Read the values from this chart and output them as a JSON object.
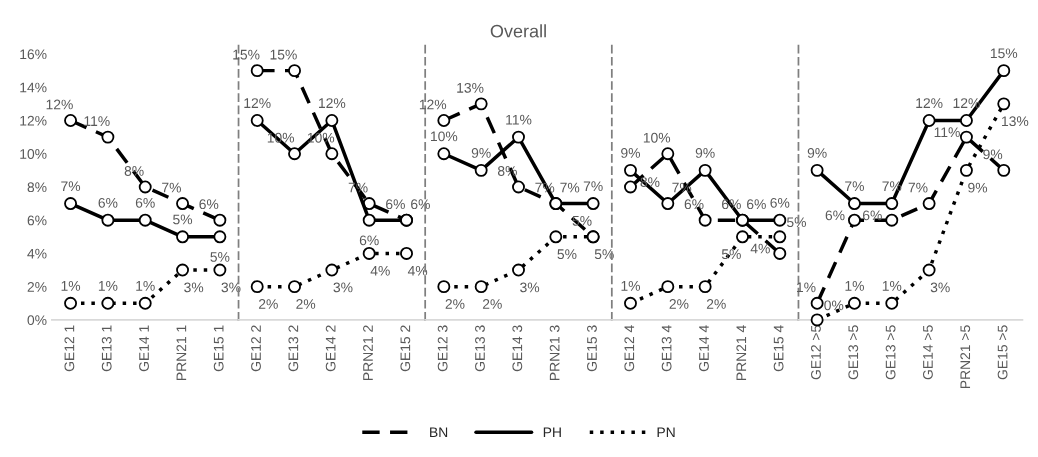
{
  "chart_data": [
    {
      "type": "line",
      "categories": [
        "GE12 1",
        "GE13 1",
        "GE14 1",
        "PRN21 1",
        "GE15 1"
      ],
      "series": [
        {
          "name": "BN",
          "color": "#000000",
          "line_style": "dashed",
          "values": [
            12,
            11,
            8,
            7,
            6
          ],
          "value_labels": [
            "12%",
            "11%",
            "8%",
            "7%",
            "6%"
          ]
        },
        {
          "name": "PH",
          "color": "#000000",
          "line_style": "solid",
          "values": [
            7,
            6,
            6,
            5,
            5
          ],
          "value_labels": [
            "7%",
            "6%",
            "6%",
            "5%",
            "5%"
          ]
        },
        {
          "name": "PN",
          "color": "#000000",
          "line_style": "dotted",
          "values": [
            1,
            1,
            1,
            3,
            3
          ],
          "value_labels": [
            "1%",
            "1%",
            "1%",
            "3%",
            "3%"
          ]
        }
      ],
      "ylim": [
        0,
        16.5
      ],
      "yticks": [
        {
          "value": 0,
          "label": "0%"
        },
        {
          "value": 2,
          "label": "2%"
        },
        {
          "value": 4,
          "label": "4%"
        },
        {
          "value": 6,
          "label": "6%"
        },
        {
          "value": 8,
          "label": "8%"
        },
        {
          "value": 10,
          "label": "10%"
        },
        {
          "value": 12,
          "label": "12%"
        },
        {
          "value": 14,
          "label": "14%"
        },
        {
          "value": 16,
          "label": "16%"
        }
      ],
      "marker": "circle",
      "legend": "bottom"
    },
    {
      "type": "line",
      "categories": [
        "GE12 2",
        "GE13 2",
        "GE14 2",
        "PRN21 2",
        "GE15 2"
      ],
      "series": [
        {
          "color": "#000000",
          "line_style": "dashed",
          "values": [
            15,
            15,
            10,
            7,
            6
          ],
          "value_labels": [
            "15%",
            "15%",
            "10%",
            "7%",
            "6%"
          ]
        },
        {
          "color": "#000000",
          "line_style": "solid",
          "values": [
            12,
            10,
            12,
            6,
            6
          ],
          "value_labels": [
            "12%",
            "10%",
            "12%",
            "6%",
            "6%"
          ]
        },
        {
          "color": "#000000",
          "line_style": "dotted",
          "values": [
            2,
            2,
            3,
            4,
            4
          ],
          "value_labels": [
            "2%",
            "2%",
            "3%",
            "4%",
            "4%"
          ]
        }
      ],
      "ylim": [
        0,
        16.5
      ],
      "tick_labels": "x",
      "marker": "circle"
    },
    {
      "type": "line",
      "title": "Overall",
      "categories": [
        "GE12 3",
        "GE13 3",
        "GE14 3",
        "PRN21 3",
        "GE15 3"
      ],
      "series": [
        {
          "color": "#000000",
          "line_style": "dashed",
          "values": [
            12,
            13,
            8,
            7,
            5
          ],
          "value_labels": [
            "12%",
            "13%",
            "8%",
            "7%",
            "5%"
          ]
        },
        {
          "color": "#000000",
          "line_style": "solid",
          "values": [
            10,
            9,
            11,
            7,
            7
          ],
          "value_labels": [
            "10%",
            "9%",
            "11%",
            "7%",
            "7%"
          ]
        },
        {
          "color": "#000000",
          "line_style": "dotted",
          "values": [
            2,
            2,
            3,
            5,
            5
          ],
          "value_labels": [
            "2%",
            "2%",
            "3%",
            "5%",
            "5%"
          ]
        }
      ],
      "ylim": [
        0,
        16.5
      ],
      "tick_labels": "x",
      "marker": "circle"
    },
    {
      "type": "line",
      "categories": [
        "GE12 4",
        "GE13 4",
        "GE14 4",
        "PRN21 4",
        "GE15 4"
      ],
      "series": [
        {
          "color": "#000000",
          "line_style": "dashed",
          "values": [
            8,
            10,
            6,
            6,
            4
          ],
          "value_labels": [
            "8%",
            "10%",
            "6%",
            "6%",
            "4%"
          ]
        },
        {
          "color": "#000000",
          "line_style": "solid",
          "values": [
            9,
            7,
            9,
            6,
            6
          ],
          "value_labels": [
            "9%",
            "7%",
            "9%",
            "6%",
            "6%"
          ]
        },
        {
          "color": "#000000",
          "line_style": "dotted",
          "values": [
            1,
            2,
            2,
            5,
            5
          ],
          "value_labels": [
            "1%",
            "2%",
            "2%",
            "5%",
            "5%"
          ]
        }
      ],
      "ylim": [
        0,
        16.5
      ],
      "tick_labels": "x",
      "marker": "circle"
    },
    {
      "type": "line",
      "categories": [
        "GE12 >5",
        "GE13 >5",
        "GE13 >5",
        "GE14 >5",
        "PRN21 >5",
        "GE15 >5"
      ],
      "series": [
        {
          "color": "#000000",
          "line_style": "dashed",
          "values": [
            1,
            6,
            6,
            7,
            11,
            9
          ],
          "value_labels": [
            "1%",
            "6%",
            "6%",
            "7%",
            "11%",
            "9%"
          ]
        },
        {
          "color": "#000000",
          "line_style": "solid",
          "values": [
            9,
            7,
            7,
            12,
            12,
            15
          ],
          "value_labels": [
            "9%",
            "7%",
            "7%",
            "12%",
            "12%",
            "15%"
          ]
        },
        {
          "color": "#000000",
          "line_style": "dotted",
          "values": [
            0,
            1,
            1,
            3,
            9,
            13
          ],
          "value_labels": [
            "0%",
            "1%",
            "1%",
            "3%",
            "9%",
            "13%"
          ]
        }
      ],
      "ylim": [
        0,
        16.5
      ],
      "tick_labels": "x",
      "marker": "circle"
    }
  ]
}
